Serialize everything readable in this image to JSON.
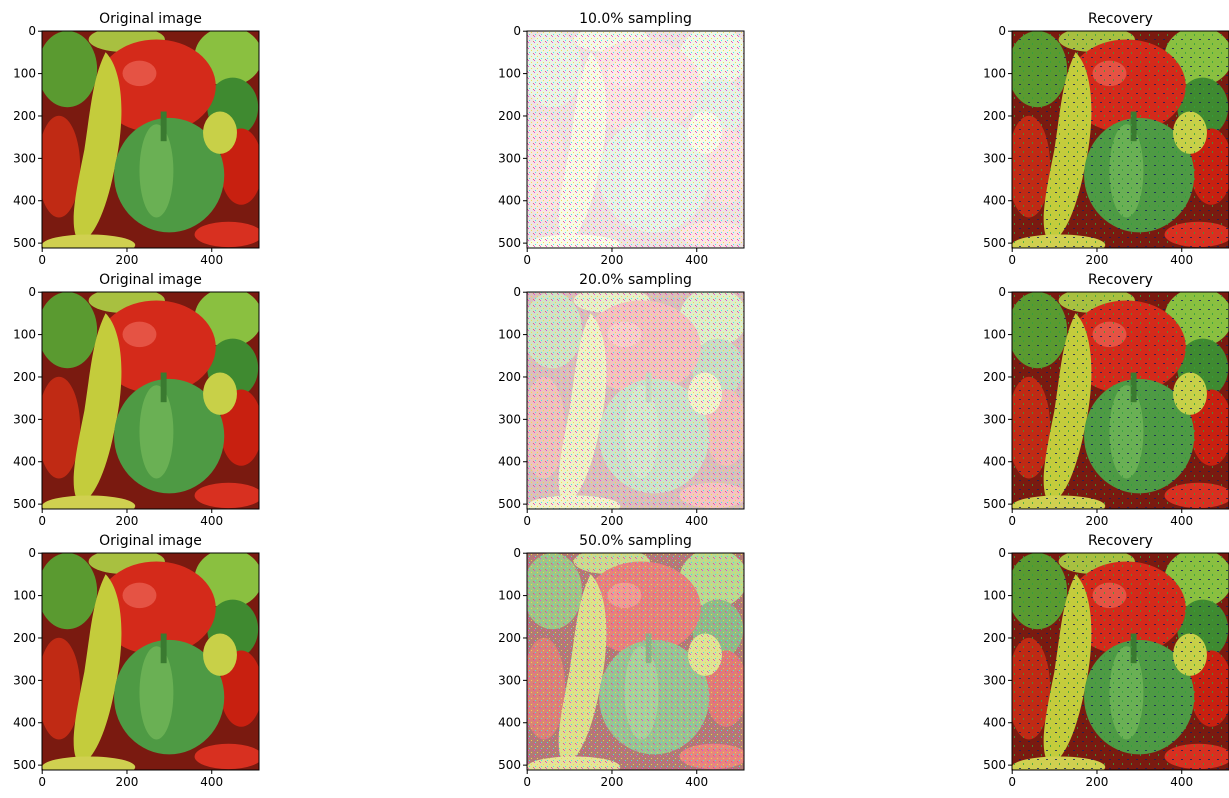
{
  "panels": [
    {
      "title": "Original image",
      "kind": "original",
      "xlim": [
        -0.5,
        511.5
      ],
      "ylim": [
        511.5,
        -0.5
      ],
      "xticks": [
        0,
        200,
        400
      ],
      "yticks": [
        0,
        100,
        200,
        300,
        400,
        500
      ]
    },
    {
      "title": "10.0% sampling",
      "kind": "sampled",
      "xlim": [
        -0.5,
        511.5
      ],
      "ylim": [
        511.5,
        -0.5
      ],
      "xticks": [
        0,
        200,
        400
      ],
      "yticks": [
        0,
        100,
        200,
        300,
        400,
        500
      ]
    },
    {
      "title": "Recovery",
      "kind": "recovery",
      "xlim": [
        -0.5,
        511.5
      ],
      "ylim": [
        511.5,
        -0.5
      ],
      "xticks": [
        0,
        200,
        400
      ],
      "yticks": [
        0,
        100,
        200,
        300,
        400,
        500
      ]
    },
    {
      "title": "Original image",
      "kind": "original",
      "xlim": [
        -0.5,
        511.5
      ],
      "ylim": [
        511.5,
        -0.5
      ],
      "xticks": [
        0,
        200,
        400
      ],
      "yticks": [
        0,
        100,
        200,
        300,
        400,
        500
      ]
    },
    {
      "title": "20.0% sampling",
      "kind": "sampled",
      "xlim": [
        -0.5,
        511.5
      ],
      "ylim": [
        511.5,
        -0.5
      ],
      "xticks": [
        0,
        200,
        400
      ],
      "yticks": [
        0,
        100,
        200,
        300,
        400,
        500
      ]
    },
    {
      "title": "Recovery",
      "kind": "recovery",
      "xlim": [
        -0.5,
        511.5
      ],
      "ylim": [
        511.5,
        -0.5
      ],
      "xticks": [
        0,
        200,
        400
      ],
      "yticks": [
        0,
        100,
        200,
        300,
        400,
        500
      ]
    },
    {
      "title": "Original image",
      "kind": "original",
      "xlim": [
        -0.5,
        511.5
      ],
      "ylim": [
        511.5,
        -0.5
      ],
      "xticks": [
        0,
        200,
        400
      ],
      "yticks": [
        0,
        100,
        200,
        300,
        400,
        500
      ]
    },
    {
      "title": "50.0% sampling",
      "kind": "sampled",
      "xlim": [
        -0.5,
        511.5
      ],
      "ylim": [
        511.5,
        -0.5
      ],
      "xticks": [
        0,
        200,
        400
      ],
      "yticks": [
        0,
        100,
        200,
        300,
        400,
        500
      ]
    },
    {
      "title": "Recovery",
      "kind": "recovery",
      "xlim": [
        -0.5,
        511.5
      ],
      "ylim": [
        511.5,
        -0.5
      ],
      "xticks": [
        0,
        200,
        400
      ],
      "yticks": [
        0,
        100,
        200,
        300,
        400,
        500
      ]
    }
  ]
}
